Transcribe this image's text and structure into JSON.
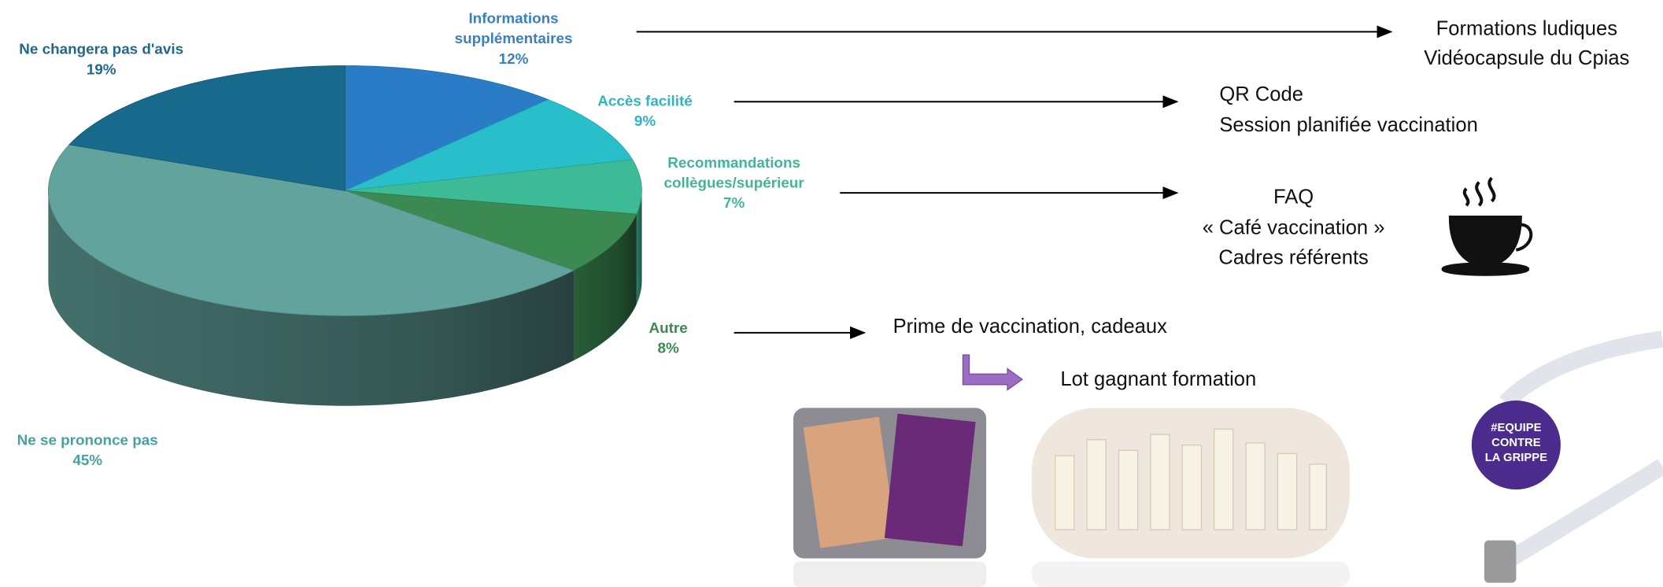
{
  "chart_data": {
    "type": "pie3d",
    "categories": [
      "Informations supplémentaires",
      "Accès facilité",
      "Recommandations collègues/supérieur",
      "Autre",
      "Ne se prononce pas",
      "Ne changera pas d'avis"
    ],
    "values": [
      12,
      9,
      7,
      8,
      45,
      19
    ],
    "value_labels": [
      "12%",
      "9%",
      "7%",
      "8%",
      "45%",
      "19%"
    ],
    "colors": [
      "#2a7cc7",
      "#28bfca",
      "#3dba96",
      "#3a8a52",
      "#62a39d",
      "#186a8c"
    ]
  },
  "actions": [
    {
      "lines": [
        "Formations ludiques",
        "Vidéocapsule du Cpias"
      ]
    },
    {
      "lines": [
        "QR Code",
        "Session planifiée vaccination"
      ]
    },
    {
      "lines": [
        "FAQ",
        "« Café vaccination »",
        "Cadres référents"
      ]
    },
    {
      "lines": [
        "Prime de vaccination, cadeaux"
      ],
      "follow_up": "Lot gagnant formation"
    }
  ],
  "badge": [
    "#EQUIPE",
    "CONTRE",
    "LA GRIPPE"
  ]
}
